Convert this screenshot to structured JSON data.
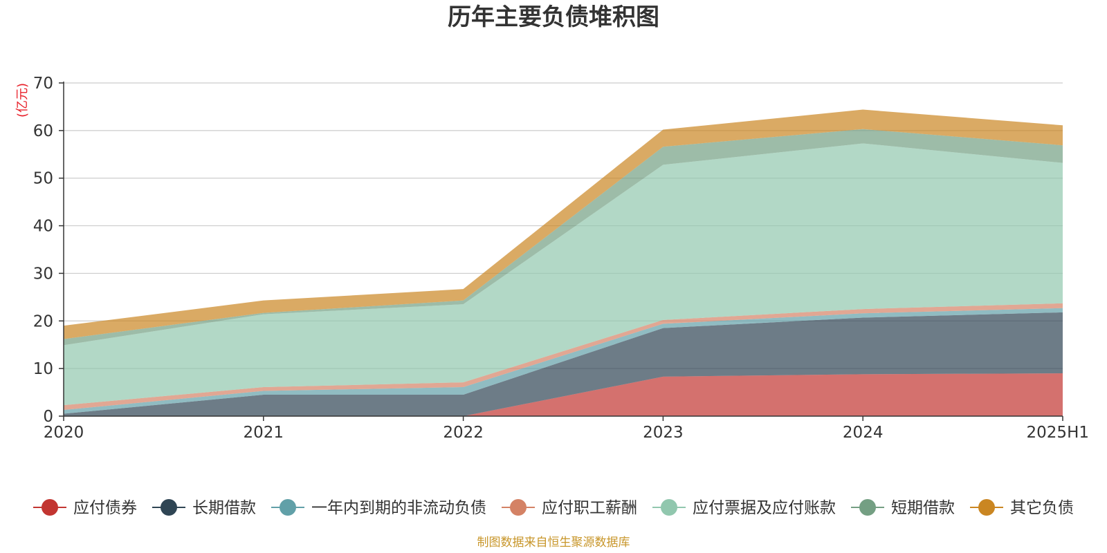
{
  "title": "历年主要负债堆积图",
  "source_note": "制图数据来自恒生聚源数据库",
  "chart_data": {
    "type": "area",
    "stacked": true,
    "title": "历年主要负债堆积图",
    "ylabel": "(亿元)",
    "xlabel": "",
    "categories": [
      "2020",
      "2021",
      "2022",
      "2023",
      "2024",
      "2025H1"
    ],
    "ylim": [
      0,
      70
    ],
    "yticks": [
      0,
      10,
      20,
      30,
      40,
      50,
      60,
      70
    ],
    "grid": true,
    "legend_position": "bottom",
    "series": [
      {
        "name": "应付债券",
        "color": "#c23531",
        "values": [
          0,
          0,
          0,
          8.3,
          8.8,
          9.0
        ]
      },
      {
        "name": "长期借款",
        "color": "#2f4554",
        "values": [
          0.5,
          4.5,
          4.5,
          10.2,
          11.9,
          12.8
        ]
      },
      {
        "name": "一年内到期的非流动负债",
        "color": "#61a0a8",
        "values": [
          0.8,
          0.8,
          1.6,
          0.9,
          0.9,
          0.9
        ]
      },
      {
        "name": "应付职工薪酬",
        "color": "#d48265",
        "values": [
          1.0,
          0.8,
          1.0,
          0.8,
          0.9,
          1.0
        ]
      },
      {
        "name": "应付票据及应付账款",
        "color": "#91c7ae",
        "values": [
          12.6,
          15.3,
          16.4,
          32.6,
          34.8,
          29.5
        ]
      },
      {
        "name": "短期借款",
        "color": "#749f83",
        "values": [
          1.3,
          0.3,
          0.8,
          3.8,
          3.0,
          3.7
        ]
      },
      {
        "name": "其它负债",
        "color": "#ca8622",
        "values": [
          2.8,
          2.6,
          2.4,
          3.6,
          4.1,
          4.2
        ]
      }
    ]
  }
}
